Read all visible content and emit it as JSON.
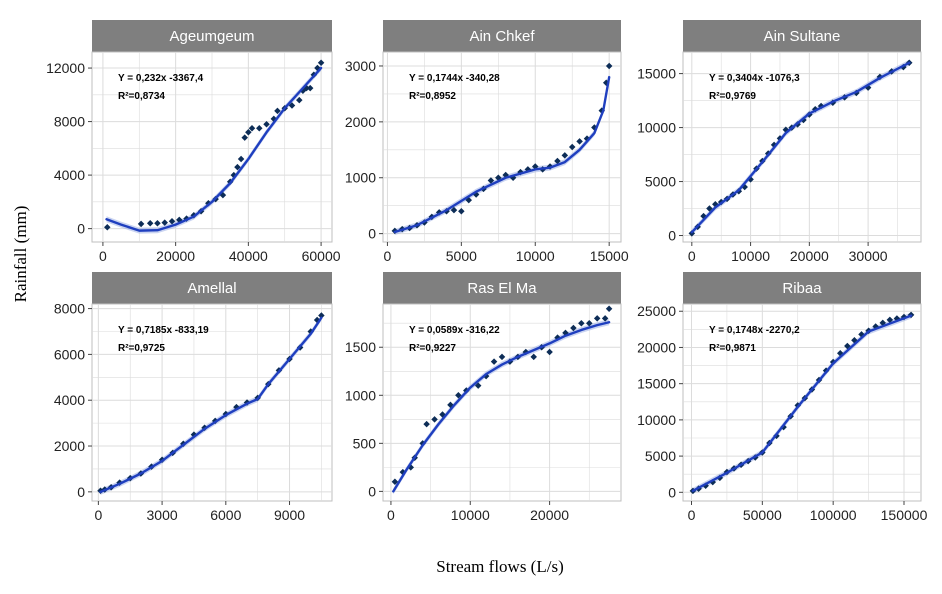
{
  "figure": {
    "ylabel": "Rainfall (mm)",
    "xlabel": "Stream flows (L/s)"
  },
  "colors": {
    "panel_bg": "#ffffff",
    "grid": "#dcdcdc",
    "strip_bg": "#7f7f7f",
    "strip_text": "#ffffff",
    "point": "#0d2d57",
    "fit_line": "#1f3fbf",
    "ribbon": "#9fb0e6"
  },
  "chart_data": [
    {
      "type": "scatter",
      "title": "Ageumgeum",
      "equation": "Y = 0,232x -3367,4",
      "r2": "R²=0,8734",
      "xlim": [
        -3000,
        63000
      ],
      "ylim": [
        -1000,
        13200
      ],
      "xticks": [
        0,
        20000,
        40000,
        60000
      ],
      "xtick_labels": [
        "0",
        "20000",
        "40000",
        "60000"
      ],
      "yticks": [
        0,
        4000,
        8000,
        12000
      ],
      "ytick_labels": [
        "0",
        "4000",
        "8000",
        "12000"
      ],
      "points": [
        [
          1200,
          100
        ],
        [
          10500,
          350
        ],
        [
          13000,
          400
        ],
        [
          15000,
          400
        ],
        [
          17000,
          450
        ],
        [
          19000,
          550
        ],
        [
          21000,
          650
        ],
        [
          23000,
          750
        ],
        [
          25000,
          1000
        ],
        [
          27000,
          1300
        ],
        [
          29000,
          1900
        ],
        [
          31000,
          2200
        ],
        [
          33000,
          2500
        ],
        [
          35000,
          3500
        ],
        [
          36000,
          4000
        ],
        [
          37000,
          4600
        ],
        [
          38000,
          5200
        ],
        [
          39000,
          6800
        ],
        [
          40000,
          7200
        ],
        [
          41000,
          7500
        ],
        [
          43000,
          7500
        ],
        [
          45000,
          7800
        ],
        [
          47000,
          8200
        ],
        [
          48000,
          8800
        ],
        [
          50000,
          9000
        ],
        [
          52000,
          9200
        ],
        [
          54000,
          9600
        ],
        [
          55000,
          10300
        ],
        [
          56000,
          10500
        ],
        [
          57000,
          10500
        ],
        [
          58000,
          11500
        ],
        [
          59000,
          12000
        ],
        [
          60000,
          12400
        ]
      ],
      "fit": [
        [
          1000,
          700
        ],
        [
          5000,
          300
        ],
        [
          10000,
          -150
        ],
        [
          15000,
          -120
        ],
        [
          20000,
          300
        ],
        [
          25000,
          900
        ],
        [
          30000,
          2000
        ],
        [
          35000,
          3400
        ],
        [
          40000,
          5200
        ],
        [
          45000,
          7200
        ],
        [
          50000,
          9000
        ],
        [
          55000,
          10500
        ],
        [
          60000,
          12000
        ]
      ]
    },
    {
      "type": "scatter",
      "title": "Ain Chkef",
      "equation": "Y = 0,1744x -340,28",
      "r2": "R²=0,8952",
      "xlim": [
        -300,
        15800
      ],
      "ylim": [
        -150,
        3250
      ],
      "xticks": [
        0,
        5000,
        10000,
        15000
      ],
      "xtick_labels": [
        "0",
        "5000",
        "10000",
        "15000"
      ],
      "yticks": [
        0,
        1000,
        2000,
        3000
      ],
      "ytick_labels": [
        "0",
        "1000",
        "2000",
        "3000"
      ],
      "points": [
        [
          500,
          50
        ],
        [
          1000,
          80
        ],
        [
          1500,
          100
        ],
        [
          2000,
          150
        ],
        [
          2500,
          200
        ],
        [
          3000,
          300
        ],
        [
          3500,
          380
        ],
        [
          4000,
          400
        ],
        [
          4500,
          420
        ],
        [
          5000,
          400
        ],
        [
          5500,
          600
        ],
        [
          6000,
          700
        ],
        [
          6500,
          800
        ],
        [
          7000,
          950
        ],
        [
          7500,
          1000
        ],
        [
          8000,
          1050
        ],
        [
          8500,
          1000
        ],
        [
          9000,
          1100
        ],
        [
          9500,
          1150
        ],
        [
          10000,
          1200
        ],
        [
          10500,
          1150
        ],
        [
          11000,
          1200
        ],
        [
          11500,
          1300
        ],
        [
          12000,
          1400
        ],
        [
          12500,
          1550
        ],
        [
          13000,
          1650
        ],
        [
          13500,
          1700
        ],
        [
          14000,
          1900
        ],
        [
          14500,
          2200
        ],
        [
          14800,
          2700
        ],
        [
          15000,
          3000
        ]
      ],
      "fit": [
        [
          500,
          30
        ],
        [
          2000,
          150
        ],
        [
          4000,
          420
        ],
        [
          6000,
          750
        ],
        [
          8000,
          1000
        ],
        [
          10000,
          1150
        ],
        [
          11000,
          1180
        ],
        [
          12000,
          1280
        ],
        [
          13000,
          1500
        ],
        [
          14000,
          1800
        ],
        [
          14600,
          2200
        ],
        [
          15000,
          2800
        ]
      ]
    },
    {
      "type": "scatter",
      "title": "Ain Sultane",
      "equation": "Y = 0,3404x -1076,3",
      "r2": "R²=0,9769",
      "xlim": [
        -1500,
        39000
      ],
      "ylim": [
        -600,
        17000
      ],
      "xticks": [
        0,
        10000,
        20000,
        30000
      ],
      "xtick_labels": [
        "0",
        "10000",
        "20000",
        "30000"
      ],
      "yticks": [
        0,
        5000,
        10000,
        15000
      ],
      "ytick_labels": [
        "0",
        "5000",
        "10000",
        "15000"
      ],
      "points": [
        [
          0,
          200
        ],
        [
          1000,
          800
        ],
        [
          2000,
          1800
        ],
        [
          3000,
          2500
        ],
        [
          4000,
          2900
        ],
        [
          5000,
          3100
        ],
        [
          6000,
          3400
        ],
        [
          7000,
          3800
        ],
        [
          8000,
          4100
        ],
        [
          9000,
          4500
        ],
        [
          10000,
          5200
        ],
        [
          11000,
          6200
        ],
        [
          12000,
          6900
        ],
        [
          13000,
          7600
        ],
        [
          14000,
          8400
        ],
        [
          15000,
          9000
        ],
        [
          16000,
          9800
        ],
        [
          17000,
          10000
        ],
        [
          18000,
          10300
        ],
        [
          19000,
          10700
        ],
        [
          20000,
          11200
        ],
        [
          21000,
          11700
        ],
        [
          22000,
          12000
        ],
        [
          24000,
          12300
        ],
        [
          26000,
          12800
        ],
        [
          28000,
          13200
        ],
        [
          30000,
          13700
        ],
        [
          32000,
          14700
        ],
        [
          34000,
          15200
        ],
        [
          36000,
          15600
        ],
        [
          37000,
          16000
        ]
      ],
      "fit": [
        [
          0,
          300
        ],
        [
          4000,
          2600
        ],
        [
          8000,
          4200
        ],
        [
          12000,
          6800
        ],
        [
          16000,
          9500
        ],
        [
          20000,
          11300
        ],
        [
          24000,
          12400
        ],
        [
          28000,
          13300
        ],
        [
          32000,
          14600
        ],
        [
          37000,
          16000
        ]
      ]
    },
    {
      "type": "scatter",
      "title": "Amellal",
      "equation": "Y = 0,7185x -833,19",
      "r2": "R²=0,9725",
      "xlim": [
        -300,
        11000
      ],
      "ylim": [
        -400,
        8200
      ],
      "xticks": [
        0,
        3000,
        6000,
        9000
      ],
      "xtick_labels": [
        "0",
        "3000",
        "6000",
        "9000"
      ],
      "yticks": [
        0,
        2000,
        4000,
        6000,
        8000
      ],
      "ytick_labels": [
        "0",
        "2000",
        "4000",
        "6000",
        "8000"
      ],
      "points": [
        [
          100,
          50
        ],
        [
          300,
          100
        ],
        [
          600,
          200
        ],
        [
          1000,
          400
        ],
        [
          1500,
          600
        ],
        [
          2000,
          800
        ],
        [
          2500,
          1100
        ],
        [
          3000,
          1400
        ],
        [
          3500,
          1700
        ],
        [
          4000,
          2100
        ],
        [
          4500,
          2500
        ],
        [
          5000,
          2800
        ],
        [
          5500,
          3100
        ],
        [
          6000,
          3400
        ],
        [
          6500,
          3700
        ],
        [
          7000,
          3900
        ],
        [
          7500,
          4100
        ],
        [
          8000,
          4700
        ],
        [
          8500,
          5300
        ],
        [
          9000,
          5800
        ],
        [
          9500,
          6300
        ],
        [
          10000,
          7000
        ],
        [
          10300,
          7500
        ],
        [
          10500,
          7700
        ]
      ],
      "fit": [
        [
          100,
          0
        ],
        [
          1000,
          350
        ],
        [
          2000,
          800
        ],
        [
          3000,
          1350
        ],
        [
          4000,
          2050
        ],
        [
          5000,
          2750
        ],
        [
          6000,
          3350
        ],
        [
          7000,
          3850
        ],
        [
          7500,
          4050
        ],
        [
          8000,
          4700
        ],
        [
          9000,
          5800
        ],
        [
          10000,
          6900
        ],
        [
          10500,
          7600
        ]
      ]
    },
    {
      "type": "scatter",
      "title": "Ras El Ma",
      "equation": "Y = 0,0589x -316,22",
      "r2": "R²=0,9227",
      "xlim": [
        -1000,
        29000
      ],
      "ylim": [
        -100,
        1950
      ],
      "xticks": [
        0,
        10000,
        20000
      ],
      "xtick_labels": [
        "0",
        "10000",
        "20000"
      ],
      "yticks": [
        0,
        500,
        1000,
        1500
      ],
      "ytick_labels": [
        "0",
        "500",
        "1000",
        "1500"
      ],
      "points": [
        [
          500,
          100
        ],
        [
          1500,
          200
        ],
        [
          2500,
          250
        ],
        [
          3000,
          350
        ],
        [
          4000,
          500
        ],
        [
          4500,
          700
        ],
        [
          5500,
          750
        ],
        [
          6500,
          800
        ],
        [
          7500,
          900
        ],
        [
          8500,
          1000
        ],
        [
          9500,
          1050
        ],
        [
          11000,
          1100
        ],
        [
          12000,
          1200
        ],
        [
          13000,
          1350
        ],
        [
          14000,
          1400
        ],
        [
          15000,
          1350
        ],
        [
          16000,
          1400
        ],
        [
          17000,
          1450
        ],
        [
          18000,
          1400
        ],
        [
          19000,
          1500
        ],
        [
          20000,
          1450
        ],
        [
          21000,
          1600
        ],
        [
          22000,
          1650
        ],
        [
          23000,
          1700
        ],
        [
          24000,
          1750
        ],
        [
          25000,
          1750
        ],
        [
          26000,
          1800
        ],
        [
          27000,
          1800
        ],
        [
          27500,
          1900
        ]
      ],
      "fit": [
        [
          300,
          0
        ],
        [
          2000,
          230
        ],
        [
          4000,
          480
        ],
        [
          6000,
          700
        ],
        [
          8000,
          900
        ],
        [
          10000,
          1080
        ],
        [
          12000,
          1220
        ],
        [
          14000,
          1320
        ],
        [
          16000,
          1400
        ],
        [
          18000,
          1470
        ],
        [
          20000,
          1540
        ],
        [
          22000,
          1620
        ],
        [
          24000,
          1680
        ],
        [
          26000,
          1730
        ],
        [
          27500,
          1760
        ]
      ]
    },
    {
      "type": "scatter",
      "title": "Ribaa",
      "equation": "Y = 0,1748x -2270,2",
      "r2": "R²=0,9871",
      "xlim": [
        -6000,
        162000
      ],
      "ylim": [
        -1200,
        26000
      ],
      "xticks": [
        0,
        50000,
        100000,
        150000
      ],
      "xtick_labels": [
        "0",
        "50000",
        "100000",
        "150000"
      ],
      "yticks": [
        0,
        5000,
        10000,
        15000,
        20000,
        25000
      ],
      "ytick_labels": [
        "0",
        "5000",
        "10000",
        "15000",
        "20000",
        "25000"
      ],
      "points": [
        [
          1000,
          200
        ],
        [
          5000,
          500
        ],
        [
          10000,
          900
        ],
        [
          15000,
          1400
        ],
        [
          20000,
          2000
        ],
        [
          25000,
          2800
        ],
        [
          30000,
          3300
        ],
        [
          35000,
          3800
        ],
        [
          40000,
          4300
        ],
        [
          45000,
          4800
        ],
        [
          50000,
          5500
        ],
        [
          55000,
          6800
        ],
        [
          60000,
          7800
        ],
        [
          65000,
          9000
        ],
        [
          70000,
          10500
        ],
        [
          75000,
          12000
        ],
        [
          80000,
          13000
        ],
        [
          85000,
          14200
        ],
        [
          90000,
          15500
        ],
        [
          95000,
          16800
        ],
        [
          100000,
          18000
        ],
        [
          105000,
          19200
        ],
        [
          110000,
          20200
        ],
        [
          115000,
          21000
        ],
        [
          120000,
          21800
        ],
        [
          125000,
          22300
        ],
        [
          130000,
          22900
        ],
        [
          135000,
          23400
        ],
        [
          140000,
          23800
        ],
        [
          145000,
          24000
        ],
        [
          150000,
          24200
        ],
        [
          155000,
          24500
        ]
      ],
      "fit": [
        [
          1000,
          200
        ],
        [
          25000,
          2700
        ],
        [
          50000,
          5500
        ],
        [
          75000,
          11800
        ],
        [
          100000,
          17800
        ],
        [
          125000,
          22200
        ],
        [
          155000,
          24400
        ]
      ]
    }
  ]
}
